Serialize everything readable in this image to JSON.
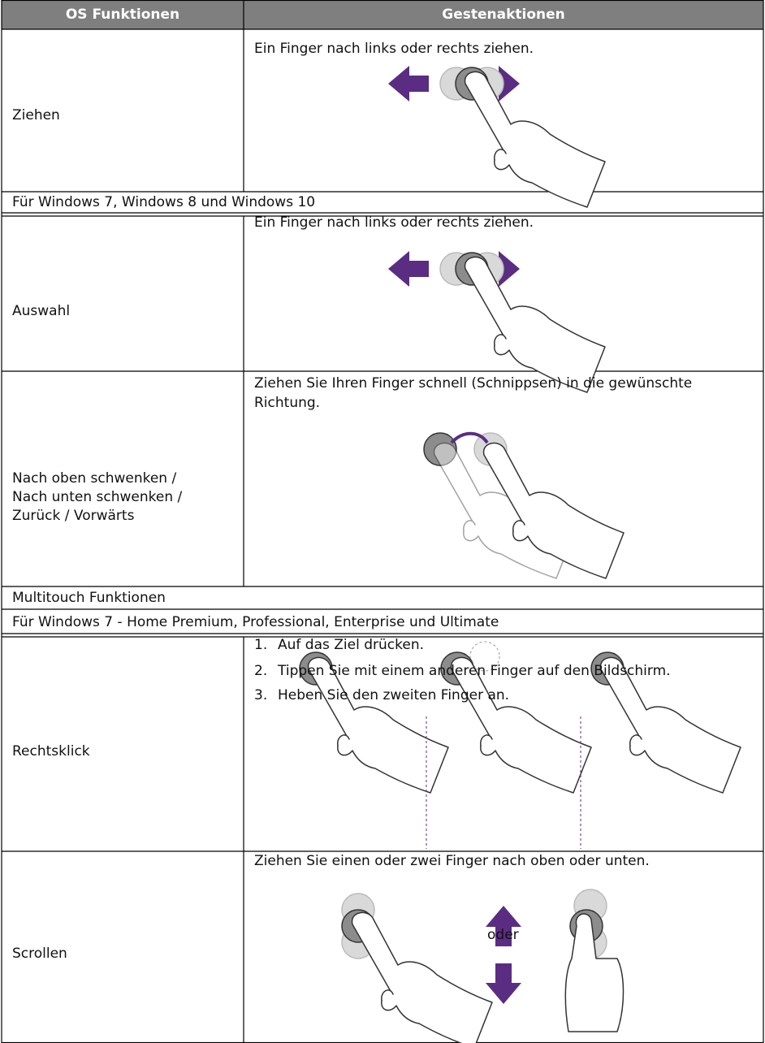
{
  "table": {
    "header": [
      "OS Funktionen",
      "Gestenaktionen"
    ],
    "rows": [
      {
        "function": "Ziehen",
        "gesture": "Ein Finger nach links oder rechts ziehen."
      },
      {
        "section": [
          "Für Windows 7, Windows 8 und Windows 10"
        ]
      },
      {
        "function": "Auswahl",
        "gesture": "Ein Finger nach links oder rechts ziehen."
      },
      {
        "function": [
          "Nach oben schwenken /",
          "Nach unten schwenken /",
          "Zurück / Vorwärts"
        ],
        "gesture": "Ziehen Sie Ihren Finger schnell (Schnippsen) in die gewünschte Richtung."
      },
      {
        "section": [
          "Multitouch Funktionen",
          "Für Windows 7 - Home Premium, Professional, Enterprise und Ultimate"
        ]
      },
      {
        "function": "Rechtsklick",
        "steps": [
          {
            "number": "1.",
            "text": "Auf das Ziel drücken."
          },
          {
            "number": "2.",
            "text": "Tippen Sie mit einem anderen Finger auf den Bildschirm."
          },
          {
            "number": "3.",
            "text": "Heben Sie den zweiten Finger an."
          }
        ]
      },
      {
        "function": "Scrollen",
        "gesture": "Ziehen Sie einen oder zwei Finger nach oben oder unten.",
        "image_label": "oder"
      }
    ]
  }
}
